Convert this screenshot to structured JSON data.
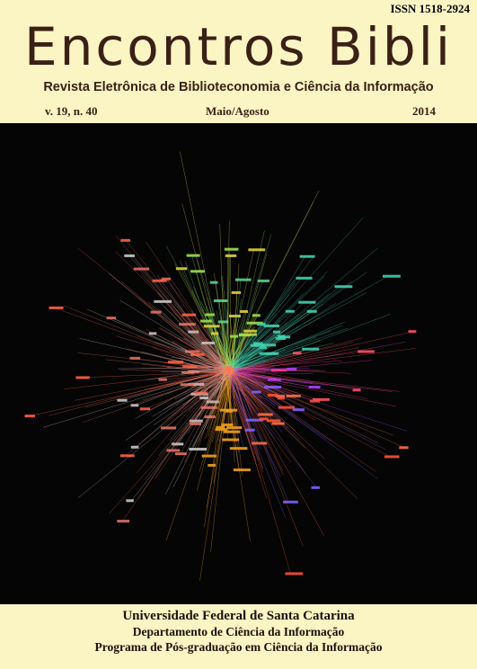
{
  "header": {
    "issn": "ISSN 1518-2924",
    "title": "Encontros Bibli",
    "subtitle": "Revista Eletrônica de Biblioteconomia e Ciência da Informação"
  },
  "issue": {
    "volume": "v. 19, n. 40",
    "period": "Maio/Agosto",
    "year": "2014"
  },
  "footer": {
    "lines": [
      "Universidade Federal de Santa Catarina",
      "Departamento de Ciência da Informação",
      "Programa de Pós-graduação em Ciência da Informação"
    ]
  }
}
